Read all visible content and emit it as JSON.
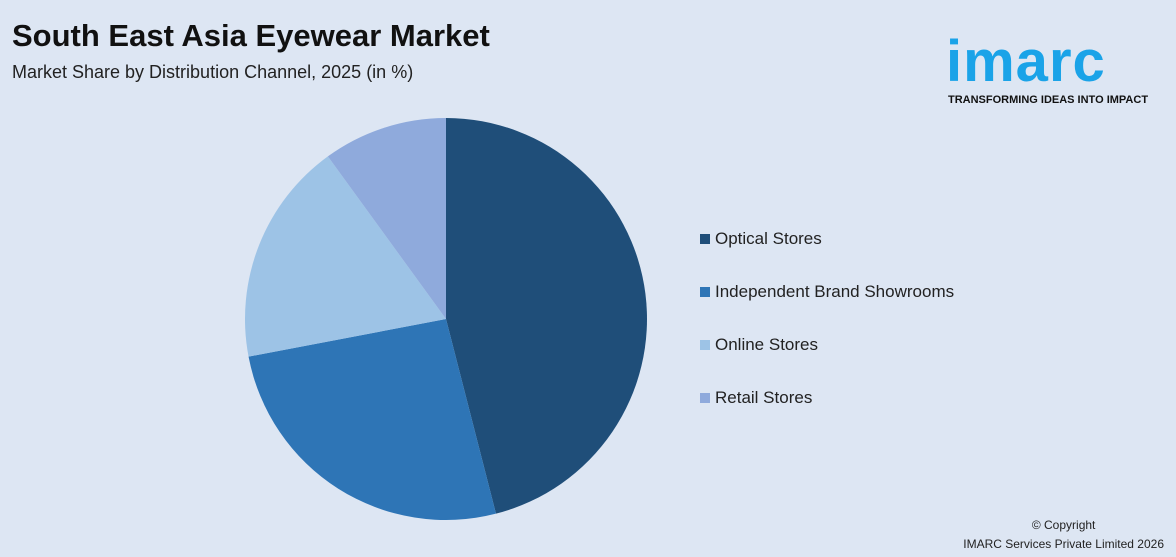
{
  "header": {
    "title": "South East Asia Eyewear Market",
    "subtitle": "Market Share by Distribution Channel, 2025 (in %)"
  },
  "logo": {
    "word": "imarc",
    "tagline": "TRANSFORMING IDEAS INTO IMPACT"
  },
  "footer": {
    "copyright": "© Copyright",
    "company": "IMARC Services Private Limited 2026"
  },
  "chart_data": {
    "type": "pie",
    "title": "South East Asia Eyewear Market",
    "subtitle": "Market Share by Distribution Channel, 2025 (in %)",
    "legend_position": "right",
    "start_angle": "12 o'clock, clockwise",
    "categories": [
      "Optical Stores",
      "Independent Brand Showrooms",
      "Online Stores",
      "Retail Stores"
    ],
    "values": [
      46,
      26,
      18,
      10
    ],
    "colors": [
      "#1f4e79",
      "#2e75b6",
      "#9dc3e6",
      "#8faadc"
    ]
  }
}
